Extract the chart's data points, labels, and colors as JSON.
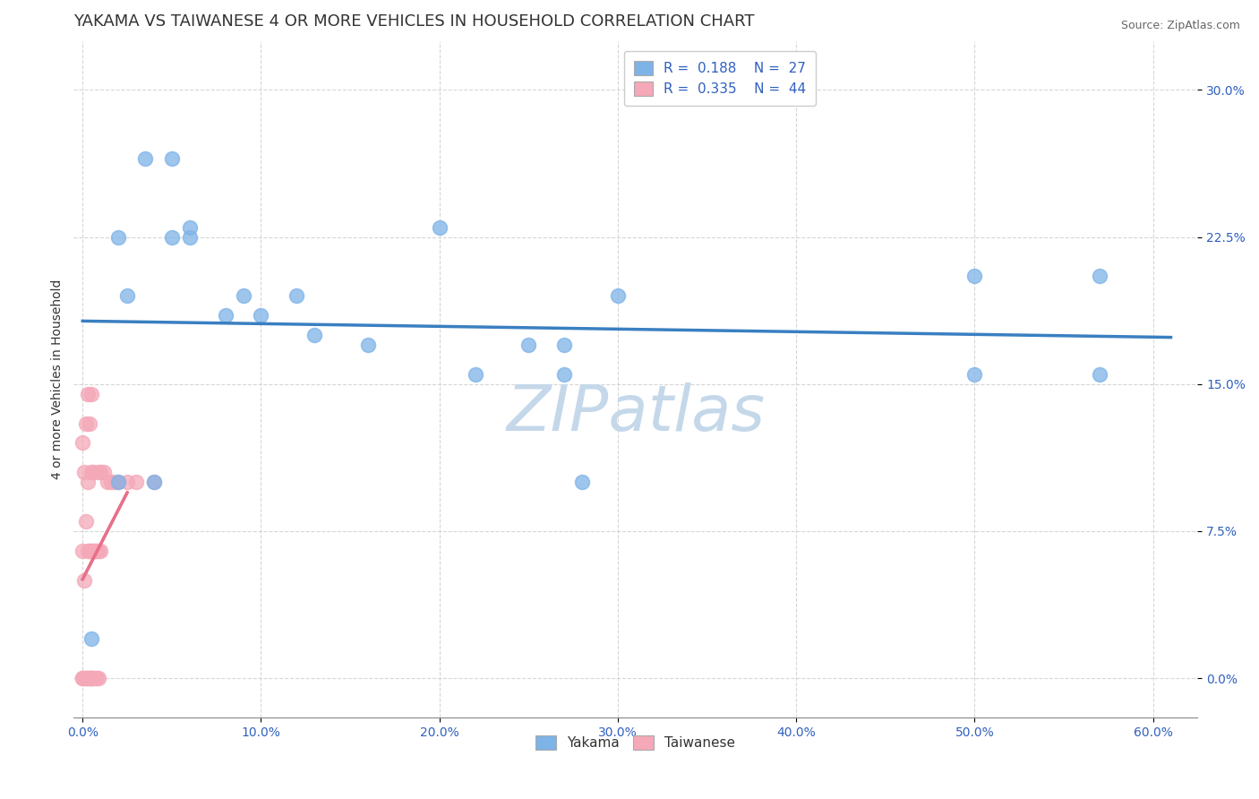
{
  "title": "YAKAMA VS TAIWANESE 4 OR MORE VEHICLES IN HOUSEHOLD CORRELATION CHART",
  "source_text": "Source: ZipAtlas.com",
  "xlabel_ticks": [
    "0.0%",
    "10.0%",
    "20.0%",
    "30.0%",
    "40.0%",
    "50.0%",
    "60.0%"
  ],
  "xlabel_vals": [
    0.0,
    0.1,
    0.2,
    0.3,
    0.4,
    0.5,
    0.6
  ],
  "ylabel_ticks": [
    "0.0%",
    "7.5%",
    "15.0%",
    "22.5%",
    "30.0%"
  ],
  "ylabel_vals": [
    0.0,
    0.075,
    0.15,
    0.225,
    0.3
  ],
  "xlim": [
    -0.005,
    0.625
  ],
  "ylim": [
    -0.02,
    0.325
  ],
  "ylabel": "4 or more Vehicles in Household",
  "legend_labels_bottom": [
    "Yakama",
    "Taiwanese"
  ],
  "yakama_color": "#7EB3E8",
  "taiwanese_color": "#F4A8B8",
  "yakama_line_color": "#3A7FC1",
  "taiwanese_line_color": "#E8708A",
  "yakama_R": 0.188,
  "yakama_N": 27,
  "taiwanese_R": 0.335,
  "taiwanese_N": 44,
  "yakama_scatter_x": [
    0.005,
    0.02,
    0.025,
    0.035,
    0.05,
    0.06,
    0.08,
    0.1,
    0.13,
    0.16,
    0.22,
    0.27,
    0.3,
    0.5,
    0.57,
    0.02,
    0.04,
    0.05,
    0.06,
    0.09,
    0.12,
    0.2,
    0.25,
    0.27,
    0.5,
    0.57,
    0.28
  ],
  "yakama_scatter_y": [
    0.02,
    0.225,
    0.195,
    0.265,
    0.265,
    0.23,
    0.185,
    0.185,
    0.175,
    0.17,
    0.155,
    0.155,
    0.195,
    0.205,
    0.205,
    0.1,
    0.1,
    0.225,
    0.225,
    0.195,
    0.195,
    0.23,
    0.17,
    0.17,
    0.155,
    0.155,
    0.1
  ],
  "taiwanese_scatter_x": [
    0.0,
    0.0,
    0.0,
    0.0,
    0.001,
    0.001,
    0.001,
    0.002,
    0.002,
    0.002,
    0.003,
    0.003,
    0.003,
    0.003,
    0.003,
    0.004,
    0.004,
    0.004,
    0.005,
    0.005,
    0.005,
    0.005,
    0.005,
    0.005,
    0.006,
    0.006,
    0.006,
    0.007,
    0.007,
    0.008,
    0.008,
    0.009,
    0.009,
    0.009,
    0.01,
    0.01,
    0.012,
    0.014,
    0.016,
    0.018,
    0.02,
    0.025,
    0.03,
    0.04
  ],
  "taiwanese_scatter_y": [
    0.0,
    0.0,
    0.065,
    0.12,
    0.0,
    0.05,
    0.105,
    0.0,
    0.08,
    0.13,
    0.0,
    0.0,
    0.065,
    0.1,
    0.145,
    0.0,
    0.065,
    0.13,
    0.0,
    0.0,
    0.0,
    0.065,
    0.105,
    0.145,
    0.0,
    0.065,
    0.105,
    0.0,
    0.065,
    0.0,
    0.065,
    0.0,
    0.065,
    0.105,
    0.065,
    0.105,
    0.105,
    0.1,
    0.1,
    0.1,
    0.1,
    0.1,
    0.1,
    0.1
  ],
  "watermark_text": "ZIPatlas",
  "watermark_color": "#c5d8ea",
  "watermark_fontsize": 52,
  "title_fontsize": 13,
  "axis_label_fontsize": 10,
  "tick_fontsize": 10,
  "legend_fontsize": 11,
  "source_fontsize": 9
}
